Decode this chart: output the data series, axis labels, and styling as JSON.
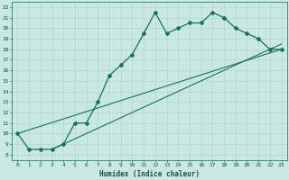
{
  "title": "",
  "xlabel": "Humidex (Indice chaleur)",
  "ylabel": "",
  "bg_color": "#c8e8e0",
  "grid_color": "#b0d8d0",
  "line_color": "#1a7060",
  "xlim": [
    -0.5,
    23.5
  ],
  "ylim": [
    7.5,
    22.5
  ],
  "xticks": [
    0,
    1,
    2,
    3,
    4,
    5,
    6,
    7,
    8,
    9,
    10,
    11,
    12,
    13,
    14,
    15,
    16,
    17,
    18,
    19,
    20,
    21,
    22,
    23
  ],
  "yticks": [
    8,
    9,
    10,
    11,
    12,
    13,
    14,
    15,
    16,
    17,
    18,
    19,
    20,
    21,
    22
  ],
  "line1_x": [
    0,
    1,
    2,
    3,
    4,
    5,
    6,
    7,
    8,
    9,
    10,
    11,
    12,
    13,
    14,
    15,
    16,
    17,
    18,
    19,
    20,
    21,
    22,
    23
  ],
  "line1_y": [
    10,
    8.5,
    8.5,
    8.5,
    9,
    11,
    11,
    13,
    15.5,
    16.5,
    17.5,
    19.5,
    21.5,
    19.5,
    20,
    20.5,
    20.5,
    21.5,
    21,
    20,
    19.5,
    19,
    18,
    18
  ],
  "line2_x": [
    0,
    23
  ],
  "line2_y": [
    10,
    18
  ],
  "line3_x": [
    3,
    23
  ],
  "line3_y": [
    8.5,
    18.5
  ]
}
